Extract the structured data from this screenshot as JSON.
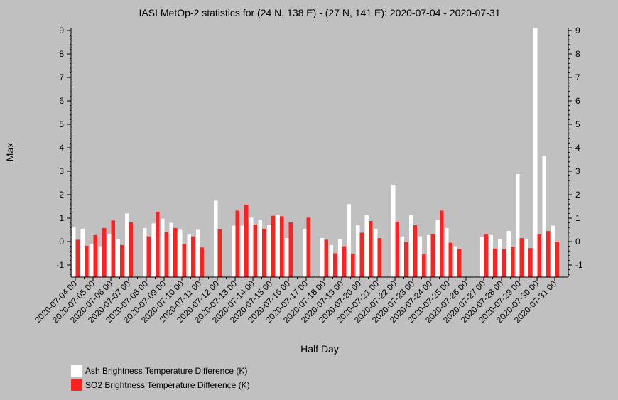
{
  "chart_data": {
    "type": "bar",
    "title": "IASI MetOp-2 statistics for (24 N, 138 E) - (27 N, 141 E): 2020-07-04 - 2020-07-31",
    "xlabel": "Half Day",
    "ylabel": "Max",
    "ylim": [
      -1.5,
      9.1
    ],
    "yticks": [
      -1,
      0,
      1,
      2,
      3,
      4,
      5,
      6,
      7,
      8,
      9
    ],
    "grid": false,
    "legend_position": "bottom-left",
    "xtick_labels": [
      "2020-07-04 00",
      "2020-07-05 00",
      "2020-07-06 00",
      "2020-07-07 00",
      "2020-07-08 00",
      "2020-07-09 00",
      "2020-07-10 00",
      "2020-07-11 00",
      "2020-07-12 00",
      "2020-07-13 00",
      "2020-07-14 00",
      "2020-07-15 00",
      "2020-07-16 00",
      "2020-07-17 00",
      "2020-07-18 00",
      "2020-07-19 00",
      "2020-07-20 00",
      "2020-07-21 00",
      "2020-07-22 00",
      "2020-07-23 00",
      "2020-07-24 00",
      "2020-07-25 00",
      "2020-07-26 00",
      "2020-07-27 00",
      "2020-07-28 00",
      "2020-07-29 00",
      "2020-07-30 00",
      "2020-07-31 00"
    ],
    "series": [
      {
        "name": "Ash Brightness Temperature Difference (K)",
        "color": "#ffffff",
        "values": [
          0.6,
          0.55,
          -0.1,
          -0.2,
          0.32,
          0.1,
          1.2,
          null,
          0.58,
          0.78,
          0.98,
          0.8,
          0.5,
          0.3,
          0.5,
          null,
          1.75,
          null,
          0.68,
          0.68,
          1.02,
          0.92,
          0.72,
          1.15,
          0.15,
          null,
          0.55,
          null,
          0.15,
          -0.15,
          0.1,
          1.6,
          0.7,
          1.12,
          0.55,
          null,
          2.42,
          0.22,
          1.12,
          0.22,
          0.28,
          0.92,
          0.58,
          -0.2,
          null,
          null,
          0.2,
          0.28,
          0.12,
          0.45,
          2.88,
          0.12,
          9.1,
          3.65,
          0.68
        ]
      },
      {
        "name": "SO2 Brightness Temperature Difference (K)",
        "color": "#ff2020",
        "values": [
          0.08,
          -0.18,
          0.28,
          0.58,
          0.9,
          -0.15,
          0.82,
          null,
          0.22,
          1.28,
          0.4,
          0.58,
          -0.1,
          0.22,
          -0.25,
          null,
          0.52,
          null,
          1.32,
          1.58,
          0.72,
          0.55,
          1.1,
          1.08,
          0.82,
          null,
          1.02,
          null,
          0.08,
          -0.5,
          -0.2,
          -0.52,
          0.38,
          0.88,
          0.15,
          null,
          0.85,
          -0.02,
          0.7,
          -0.55,
          0.32,
          1.32,
          -0.05,
          -0.32,
          null,
          null,
          0.3,
          -0.3,
          -0.32,
          -0.22,
          0.15,
          -0.28,
          0.3,
          0.45,
          0.0
        ]
      }
    ]
  }
}
